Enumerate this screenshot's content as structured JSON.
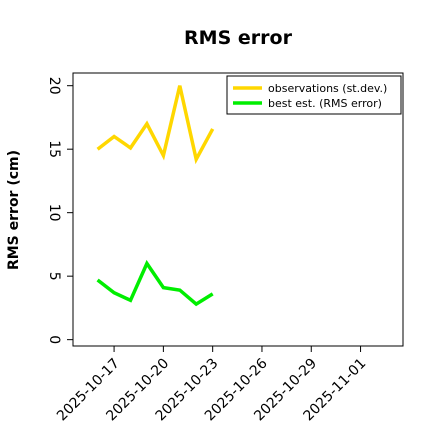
{
  "chart_data": {
    "type": "line",
    "title": "RMS error",
    "xlabel": "",
    "ylabel": "RMS error (cm)",
    "ylim": [
      -0.5,
      21
    ],
    "yticks": [
      0,
      5,
      10,
      15,
      20
    ],
    "xlim": [
      "2025-10-14T12:00",
      "2025-11-03T14:00"
    ],
    "xticks": [
      "2025-10-17",
      "2025-10-20",
      "2025-10-23",
      "2025-10-26",
      "2025-10-29",
      "2025-11-01"
    ],
    "highlighted_tick": "2025-10-23",
    "highlight_color": "#2e8b2e",
    "grid": false,
    "legend_position": "top-right",
    "series": [
      {
        "name": "observations (st.dev.)",
        "color": "#ffd700",
        "x": [
          "2025-10-16",
          "2025-10-17",
          "2025-10-18",
          "2025-10-19",
          "2025-10-20",
          "2025-10-21",
          "2025-10-22",
          "2025-10-23"
        ],
        "y": [
          15.0,
          16.0,
          15.1,
          17.0,
          14.5,
          20.0,
          14.2,
          16.6
        ]
      },
      {
        "name": "best est. (RMS error)",
        "color": "#00ee00",
        "x": [
          "2025-10-16",
          "2025-10-17",
          "2025-10-18",
          "2025-10-19",
          "2025-10-20",
          "2025-10-21",
          "2025-10-22",
          "2025-10-23"
        ],
        "y": [
          4.7,
          3.7,
          3.1,
          6.0,
          4.1,
          3.9,
          2.8,
          3.6
        ]
      }
    ]
  }
}
